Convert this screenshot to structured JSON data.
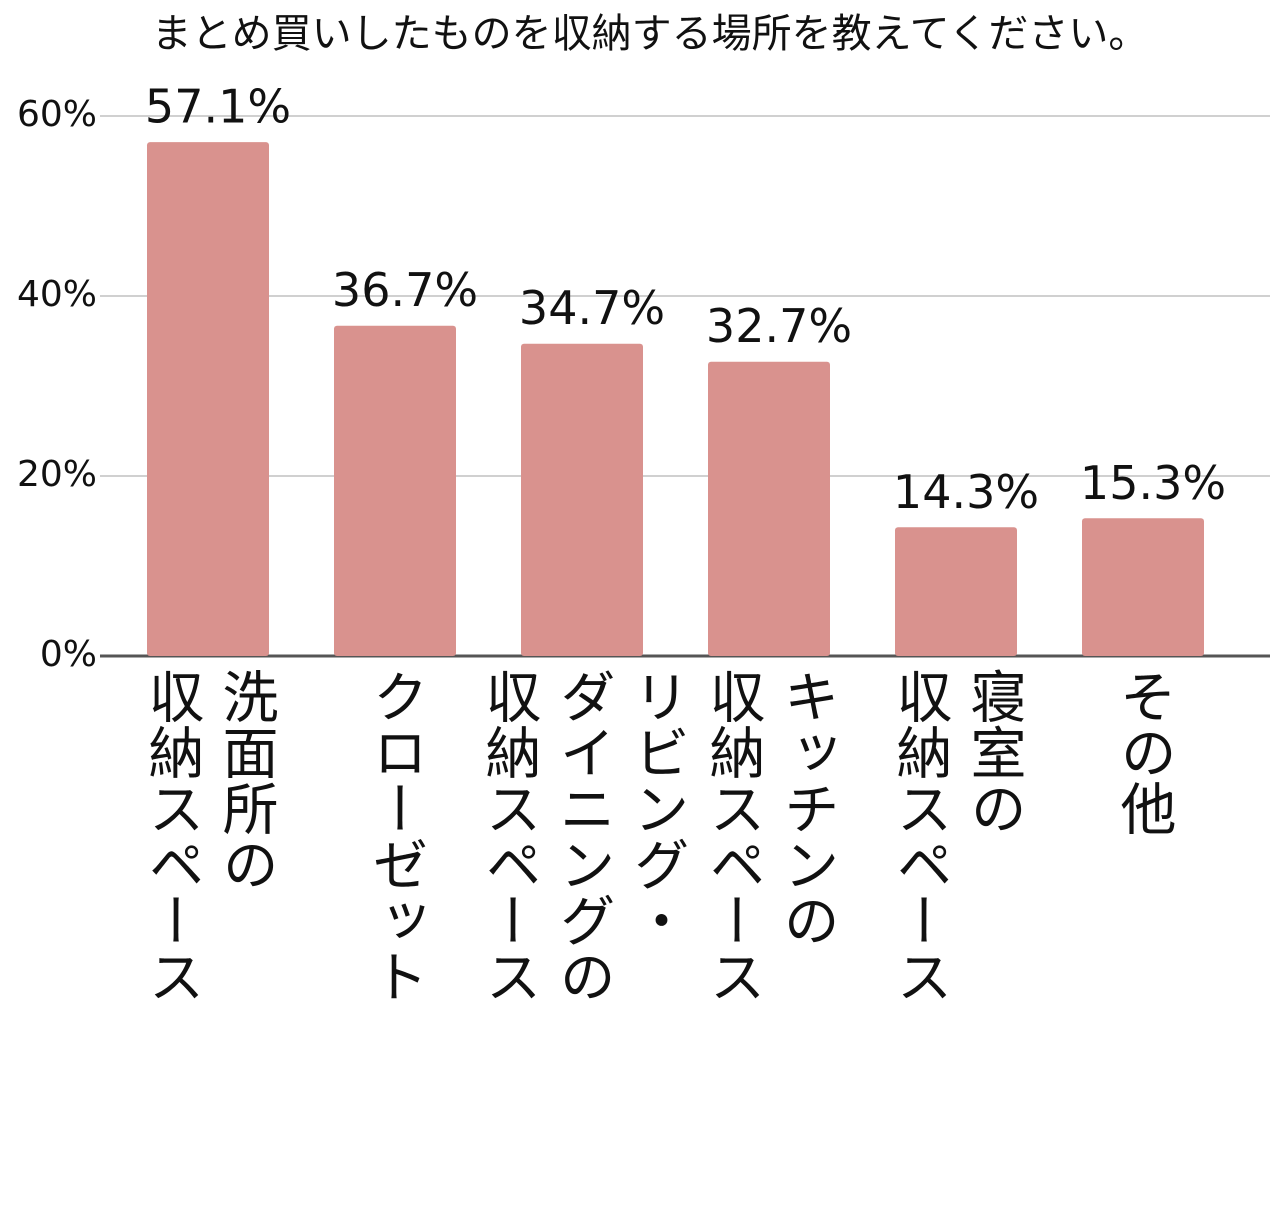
{
  "chart_data": {
    "type": "bar",
    "title": "まとめ買いしたものを収納する場所を教えてください。",
    "categories": [
      "洗面所の\n収納スペース",
      "クローゼット",
      "リビング・\nダイニングの\n収納スペース",
      "キッチンの\n収納スペース",
      "寝室の\n収納スペース",
      "その他"
    ],
    "values": [
      57.1,
      36.7,
      34.7,
      32.7,
      14.3,
      15.3
    ],
    "value_labels": [
      "57.1%",
      "36.7%",
      "34.7%",
      "32.7%",
      "14.3%",
      "15.3%"
    ],
    "color": "#d9928e",
    "ylim": [
      0,
      60
    ],
    "yticks": [
      {
        "value": 0,
        "label": "0%"
      },
      {
        "value": 20,
        "label": "20%"
      },
      {
        "value": 40,
        "label": "40%"
      },
      {
        "value": 60,
        "label": "60%"
      }
    ],
    "grid": true
  }
}
